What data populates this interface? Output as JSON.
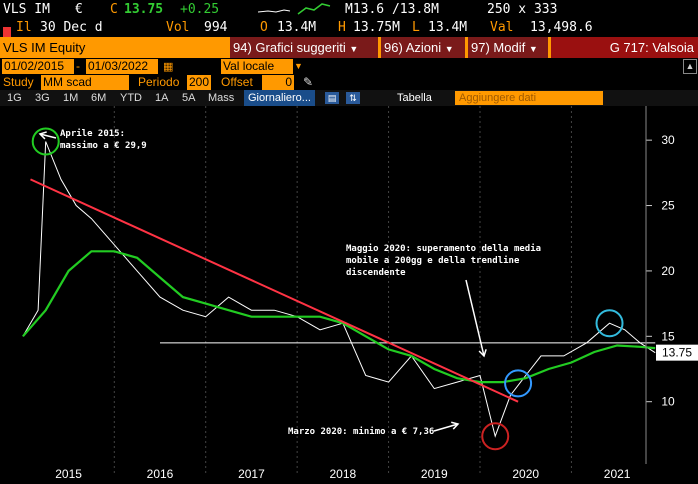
{
  "quote": {
    "ticker": "VLS IM",
    "currency_symbol": "€",
    "last_prefix": "C",
    "last": "13.75",
    "change": "+0.25",
    "range": "M13.6 /13.8M",
    "size": "250 x 333",
    "date_label": "Il",
    "date": "30 Dec d",
    "vol_label": "Vol",
    "vol": "994",
    "open_label": "O",
    "open": "13.4M",
    "high_label": "H",
    "high": "13.75M",
    "low_label": "L",
    "low": "13.4M",
    "val_label": "Val",
    "val": "13,498.6"
  },
  "titlebar": {
    "security": "VLS IM Equity",
    "menu1_num": "94)",
    "menu1": "Grafici suggeriti",
    "menu2_num": "96)",
    "menu2": "Azioni",
    "menu3_num": "97)",
    "menu3": "Modif",
    "function": "G 717: Valsoia"
  },
  "daterow": {
    "start": "01/02/2015",
    "end": "01/03/2022",
    "currency": "Val locale"
  },
  "studyrow": {
    "study_label": "Study",
    "study_value": "MM scad",
    "period_label": "Periodo",
    "period_value": "200",
    "offset_label": "Offset",
    "offset_value": "0"
  },
  "tabs": [
    "1G",
    "3G",
    "1M",
    "6M",
    "YTD",
    "1A",
    "5A",
    "Mass",
    "Giornaliero..."
  ],
  "tabs_active": "Giornaliero...",
  "toolbar": {
    "table": "Tabella",
    "add_data": "Aggiungere dati"
  },
  "chart_data": {
    "type": "line",
    "series": [
      {
        "name": "",
        "color": "#ffffff",
        "x": [
          "2015-01",
          "2015-02",
          "2015-03",
          "2015-04",
          "2015-06",
          "2015-08",
          "2015-10",
          "2016-01",
          "2016-04",
          "2016-07",
          "2016-10",
          "2017-01",
          "2017-04",
          "2017-07",
          "2017-10",
          "2018-01",
          "2018-04",
          "2018-07",
          "2018-10",
          "2019-01",
          "2019-04",
          "2019-07",
          "2019-10",
          "2020-01",
          "2020-03",
          "2020-05",
          "2020-07",
          "2020-09",
          "2020-12",
          "2021-03",
          "2021-06",
          "2021-08",
          "2021-10",
          "2021-12"
        ],
        "y": [
          15,
          16,
          17,
          29.9,
          27,
          25,
          24,
          22,
          20,
          18,
          17,
          16.5,
          18,
          17,
          17,
          16.5,
          15.5,
          16,
          12,
          11.5,
          13.5,
          11,
          11.5,
          12,
          7.36,
          10.5,
          12,
          13.5,
          13.5,
          14.5,
          16,
          15.5,
          14.5,
          13.75
        ]
      },
      {
        "name": "",
        "color": "#22cc22",
        "x": [
          "2015-01",
          "2015-04",
          "2015-07",
          "2015-10",
          "2016-01",
          "2016-04",
          "2016-07",
          "2016-10",
          "2017-01",
          "2017-04",
          "2017-07",
          "2017-10",
          "2018-01",
          "2018-04",
          "2018-07",
          "2018-10",
          "2019-01",
          "2019-04",
          "2019-07",
          "2019-10",
          "2020-01",
          "2020-04",
          "2020-07",
          "2020-10",
          "2021-01",
          "2021-04",
          "2021-07",
          "2021-10",
          "2021-12"
        ],
        "y": [
          15,
          17,
          20,
          21.5,
          21.5,
          21,
          19.5,
          18,
          17.5,
          17,
          16.5,
          16.5,
          16.5,
          16.5,
          16,
          15,
          14,
          13.5,
          12.5,
          11.8,
          11.5,
          11.5,
          11.8,
          12.5,
          13,
          13.8,
          14.3,
          14.2,
          14.1
        ]
      }
    ],
    "trendline": {
      "color": "#ff3344",
      "x": [
        "2015-02",
        "2020-06"
      ],
      "y": [
        27,
        10
      ]
    },
    "support": {
      "color": "#ffffff",
      "x": [
        "2016-07",
        "2021-12"
      ],
      "y": [
        14.5,
        14.5
      ]
    },
    "last_value_label": "13.75",
    "ylim": [
      6,
      32
    ],
    "yticks": [
      10,
      15,
      20,
      25,
      30
    ],
    "xticks": [
      "2015",
      "2016",
      "2017",
      "2018",
      "2019",
      "2020",
      "2021"
    ],
    "annotations": [
      {
        "lines": [
          "Aprile 2015:",
          "massimo a € 29,9"
        ]
      },
      {
        "lines": [
          "Maggio 2020: superamento della media",
          "mobile a 200gg e della trendline",
          "discendente"
        ]
      },
      {
        "lines": [
          "Marzo 2020: minimo a € 7,36"
        ]
      }
    ],
    "circles": [
      {
        "color": "#22cc22",
        "x": "2015-04",
        "y": 29.9
      },
      {
        "color": "#3399ff",
        "x": "2020-06",
        "y": 11.4
      },
      {
        "color": "#cc2222",
        "x": "2020-03",
        "y": 7.36
      },
      {
        "color": "#33bbdd",
        "x": "2021-06",
        "y": 16
      }
    ]
  }
}
